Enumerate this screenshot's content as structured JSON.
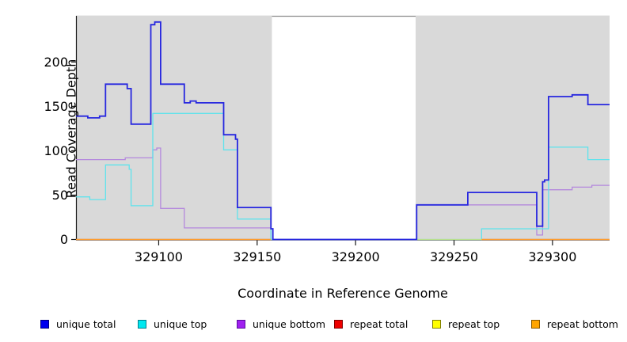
{
  "figure": {
    "ylabel": "Read Coverage Depth",
    "xlabel": "Coordinate in Reference Genome"
  },
  "chart_data": {
    "type": "line",
    "style": "step",
    "title": "",
    "xlabel": "Coordinate in Reference Genome",
    "ylabel": "Read Coverage Depth",
    "xlim": [
      329058,
      329329
    ],
    "ylim": [
      0,
      252
    ],
    "x_ticks": [
      329100,
      329150,
      329200,
      329250,
      329300
    ],
    "y_ticks": [
      0,
      50,
      100,
      150,
      200
    ],
    "grid": false,
    "legend_position": "bottom",
    "panel_background_blocks": [
      {
        "x1": 329058,
        "x2": 329157.5,
        "color": "#d9d9d9"
      },
      {
        "x1": 329230.5,
        "x2": 329329,
        "color": "#ffffff_gap_before",
        "note": ""
      }
    ],
    "shaded_regions": [
      {
        "x1": 329058,
        "x2": 329157.5
      },
      {
        "x1": 329230.5,
        "x2": 329329
      }
    ],
    "gap_region": {
      "x1": 329157.5,
      "x2": 329230.5
    },
    "series": [
      {
        "name": "unique total",
        "key": "unique_total",
        "line_color": "#2727DF",
        "opacity": 1,
        "parts": [
          {
            "steps": [
              [
                329058,
                139
              ],
              [
                329064,
                137
              ],
              [
                329070,
                139
              ],
              [
                329073,
                175
              ],
              [
                329084,
                170
              ],
              [
                329086,
                130
              ],
              [
                329096,
                242
              ],
              [
                329098,
                245
              ],
              [
                329101,
                175
              ],
              [
                329113,
                154
              ],
              [
                329116,
                156
              ],
              [
                329119,
                154
              ],
              [
                329133,
                118
              ],
              [
                329139,
                113
              ],
              [
                329140,
                36
              ],
              [
                329157,
                12
              ],
              [
                329158,
                0
              ],
              [
                329231,
                39
              ],
              [
                329257,
                53
              ],
              [
                329292,
                15
              ],
              [
                329295,
                65
              ],
              [
                329296,
                67
              ],
              [
                329298,
                161
              ],
              [
                329310,
                163
              ],
              [
                329318,
                152
              ]
            ],
            "end": 329329
          }
        ]
      },
      {
        "name": "unique top",
        "key": "unique_top",
        "line_color": "#5FE3EC",
        "opacity": 1,
        "parts": [
          {
            "steps": [
              [
                329058,
                48
              ],
              [
                329065,
                45
              ],
              [
                329073,
                84
              ],
              [
                329085,
                79
              ],
              [
                329086,
                38
              ],
              [
                329097,
                142
              ],
              [
                329133,
                101
              ],
              [
                329140,
                23
              ],
              [
                329157,
                0
              ],
              [
                329264,
                12
              ],
              [
                329298,
                104
              ],
              [
                329318,
                90
              ]
            ],
            "end": 329329
          }
        ]
      },
      {
        "name": "unique bottom",
        "key": "unique_bottom",
        "line_color": "#B488DD",
        "opacity": 1,
        "parts": [
          {
            "steps": [
              [
                329058,
                90
              ],
              [
                329083,
                92
              ],
              [
                329097,
                101
              ],
              [
                329099,
                103
              ],
              [
                329101,
                35
              ],
              [
                329113,
                13
              ],
              [
                329157,
                0
              ],
              [
                329231,
                39
              ],
              [
                329292,
                5
              ],
              [
                329295,
                56
              ],
              [
                329310,
                59
              ],
              [
                329320,
                61
              ]
            ],
            "end": 329329
          }
        ]
      },
      {
        "name": "repeat total",
        "key": "repeat_total",
        "line_color": "#CC2222",
        "opacity": 1,
        "parts": [
          {
            "steps": [
              [
                329058,
                0
              ]
            ],
            "end": 329157
          },
          {
            "steps": [
              [
                329264,
                0
              ]
            ],
            "end": 329329
          }
        ]
      },
      {
        "name": "repeat top",
        "key": "repeat_top",
        "line_color": "#E0E066",
        "opacity": 0.7,
        "parts": [
          {
            "steps": [
              [
                329058,
                0
              ]
            ],
            "end": 329157
          },
          {
            "steps": [
              [
                329231,
                0
              ]
            ],
            "end": 329329
          }
        ]
      },
      {
        "name": "repeat bottom",
        "key": "repeat_bottom",
        "line_color": "#FF9D2E",
        "opacity": 1,
        "parts": [
          {
            "steps": [
              [
                329058,
                0
              ]
            ],
            "end": 329157
          },
          {
            "steps": [
              [
                329264,
                0
              ]
            ],
            "end": 329329
          }
        ]
      }
    ],
    "draw_order": [
      "repeat_total",
      "unique_bottom",
      "unique_top",
      "repeat_top",
      "repeat_bottom",
      "unique_total"
    ]
  },
  "legend": {
    "items": [
      {
        "key": "unique_total",
        "label": "unique total",
        "fill": "#0000EE",
        "border": "#000080"
      },
      {
        "key": "unique_top",
        "label": "unique top",
        "fill": "#00E8F0",
        "border": "#007F8C"
      },
      {
        "key": "unique_bottom",
        "label": "unique bottom",
        "fill": "#A020F0",
        "border": "#5A0DA0"
      },
      {
        "key": "repeat_total",
        "label": "repeat total",
        "fill": "#EE0000",
        "border": "#800000"
      },
      {
        "key": "repeat_top",
        "label": "repeat top",
        "fill": "#FFFF00",
        "border": "#808000"
      },
      {
        "key": "repeat_bottom",
        "label": "repeat bottom",
        "fill": "#FFA500",
        "border": "#8B5A00"
      }
    ]
  }
}
